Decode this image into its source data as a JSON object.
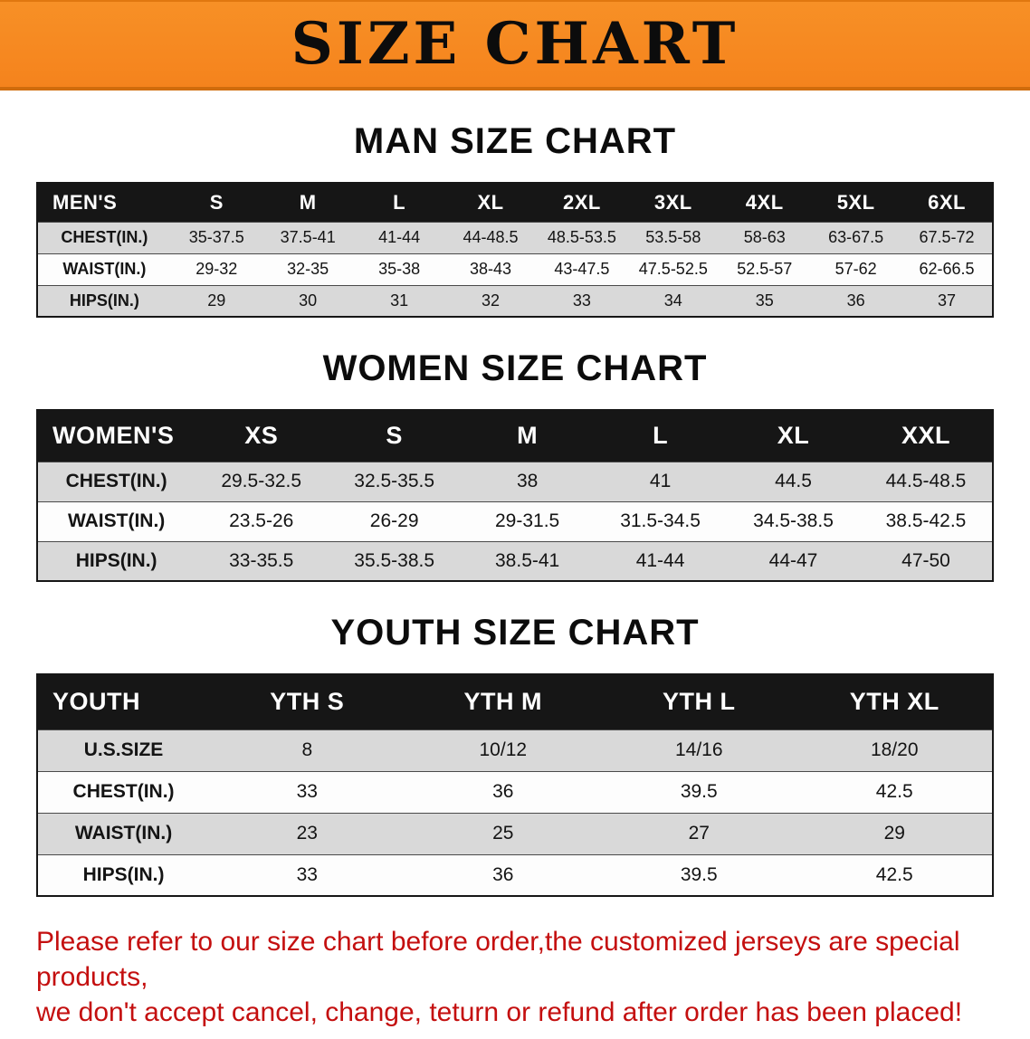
{
  "banner": {
    "title": "SIZE CHART",
    "background_color": "#f5831d"
  },
  "headings": {
    "men": "MAN SIZE CHART",
    "women": "WOMEN SIZE CHART",
    "youth": "YOUTH SIZE CHART"
  },
  "tables": {
    "men": {
      "header": [
        "MEN'S",
        "S",
        "M",
        "L",
        "XL",
        "2XL",
        "3XL",
        "4XL",
        "5XL",
        "6XL"
      ],
      "rows": [
        [
          "CHEST(IN.)",
          "35-37.5",
          "37.5-41",
          "41-44",
          "44-48.5",
          "48.5-53.5",
          "53.5-58",
          "58-63",
          "63-67.5",
          "67.5-72"
        ],
        [
          "WAIST(IN.)",
          "29-32",
          "32-35",
          "35-38",
          "38-43",
          "43-47.5",
          "47.5-52.5",
          "52.5-57",
          "57-62",
          "62-66.5"
        ],
        [
          "HIPS(IN.)",
          "29",
          "30",
          "31",
          "32",
          "33",
          "34",
          "35",
          "36",
          "37"
        ]
      ]
    },
    "women": {
      "header": [
        "WOMEN'S",
        "XS",
        "S",
        "M",
        "L",
        "XL",
        "XXL"
      ],
      "rows": [
        [
          "CHEST(IN.)",
          "29.5-32.5",
          "32.5-35.5",
          "38",
          "41",
          "44.5",
          "44.5-48.5"
        ],
        [
          "WAIST(IN.)",
          "23.5-26",
          "26-29",
          "29-31.5",
          "31.5-34.5",
          "34.5-38.5",
          "38.5-42.5"
        ],
        [
          "HIPS(IN.)",
          "33-35.5",
          "35.5-38.5",
          "38.5-41",
          "41-44",
          "44-47",
          "47-50"
        ]
      ]
    },
    "youth": {
      "header": [
        "YOUTH",
        "YTH S",
        "YTH M",
        "YTH L",
        "YTH XL"
      ],
      "rows": [
        [
          "U.S.SIZE",
          "8",
          "10/12",
          "14/16",
          "18/20"
        ],
        [
          "CHEST(IN.)",
          "33",
          "36",
          "39.5",
          "42.5"
        ],
        [
          "WAIST(IN.)",
          "23",
          "25",
          "27",
          "29"
        ],
        [
          "HIPS(IN.)",
          "33",
          "36",
          "39.5",
          "42.5"
        ]
      ]
    }
  },
  "disclaimer": {
    "line1": "Please refer to our size chart before order,the customized jerseys are special products,",
    "line2": "we don't accept cancel, change, teturn or refund after order has been placed!",
    "color": "#c40f0f"
  }
}
